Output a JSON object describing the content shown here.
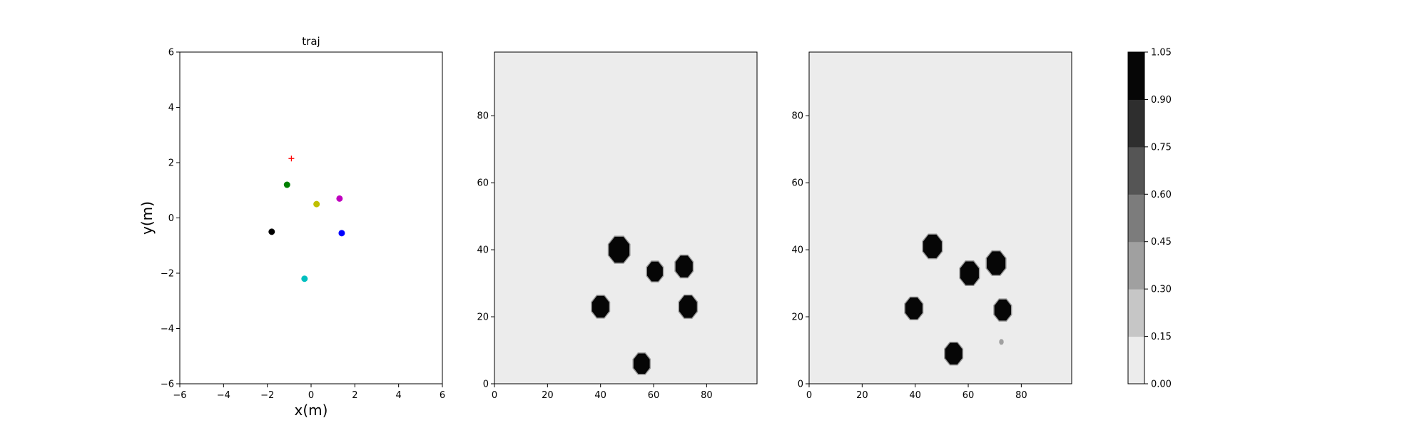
{
  "chart_data": [
    {
      "type": "scatter",
      "title": "traj",
      "xlabel": "x(m)",
      "ylabel": "y(m)",
      "xlim": [
        -6,
        6
      ],
      "ylim": [
        -6,
        6
      ],
      "xticks": [
        -6,
        -4,
        -2,
        0,
        2,
        4,
        6
      ],
      "yticks": [
        -6,
        -4,
        -2,
        0,
        2,
        4,
        6
      ],
      "points": [
        {
          "x": -1.1,
          "y": 1.2,
          "color": "#008000",
          "marker": "circle"
        },
        {
          "x": 0.25,
          "y": 0.5,
          "color": "#bfbf00",
          "marker": "circle"
        },
        {
          "x": 1.3,
          "y": 0.7,
          "color": "#bf00bf",
          "marker": "circle"
        },
        {
          "x": -1.8,
          "y": -0.5,
          "color": "#000000",
          "marker": "circle"
        },
        {
          "x": 1.4,
          "y": -0.55,
          "color": "#0000ff",
          "marker": "circle"
        },
        {
          "x": -0.3,
          "y": -2.2,
          "color": "#00bfbf",
          "marker": "circle"
        },
        {
          "x": -0.9,
          "y": 2.15,
          "color": "#ff0000",
          "marker": "plus"
        }
      ]
    },
    {
      "type": "heatmap",
      "title": "",
      "xlim": [
        0,
        99
      ],
      "ylim": [
        0,
        99
      ],
      "xticks": [
        0,
        20,
        40,
        60,
        80
      ],
      "yticks": [
        0,
        20,
        40,
        60,
        80
      ],
      "background_level": 0.07,
      "blobs": [
        {
          "x": 47,
          "y": 40,
          "r": 4.2,
          "level": 1.0
        },
        {
          "x": 60.5,
          "y": 33.5,
          "r": 3.2,
          "level": 1.0
        },
        {
          "x": 71.5,
          "y": 35,
          "r": 3.5,
          "level": 1.0
        },
        {
          "x": 40,
          "y": 23,
          "r": 3.5,
          "level": 1.0
        },
        {
          "x": 73,
          "y": 23,
          "r": 3.6,
          "level": 1.0
        },
        {
          "x": 55.5,
          "y": 6,
          "r": 3.3,
          "level": 1.0
        }
      ]
    },
    {
      "type": "heatmap",
      "title": "",
      "xlim": [
        0,
        99
      ],
      "ylim": [
        0,
        99
      ],
      "xticks": [
        0,
        20,
        40,
        60,
        80
      ],
      "yticks": [
        0,
        20,
        40,
        60,
        80
      ],
      "background_level": 0.07,
      "blobs": [
        {
          "x": 46.5,
          "y": 41,
          "r": 3.8,
          "level": 1.0
        },
        {
          "x": 60.5,
          "y": 33,
          "r": 3.8,
          "level": 1.0
        },
        {
          "x": 70.5,
          "y": 36,
          "r": 3.8,
          "level": 1.0
        },
        {
          "x": 39.5,
          "y": 22.5,
          "r": 3.5,
          "level": 1.0
        },
        {
          "x": 73,
          "y": 22,
          "r": 3.4,
          "level": 1.0
        },
        {
          "x": 54.5,
          "y": 9,
          "r": 3.5,
          "level": 1.0
        },
        {
          "x": 72.5,
          "y": 12.5,
          "r": 0.9,
          "level": 0.35
        }
      ]
    }
  ],
  "colorbar": {
    "levels": [
      0.0,
      0.15,
      0.3,
      0.45,
      0.6,
      0.75,
      0.9,
      1.05
    ],
    "tick_labels": [
      "0.00",
      "0.15",
      "0.30",
      "0.45",
      "0.60",
      "0.75",
      "0.90",
      "1.05"
    ],
    "colors": [
      "#ececec",
      "#c6c6c6",
      "#a0a0a0",
      "#7c7c7c",
      "#555555",
      "#2e2e2e",
      "#060606"
    ]
  }
}
